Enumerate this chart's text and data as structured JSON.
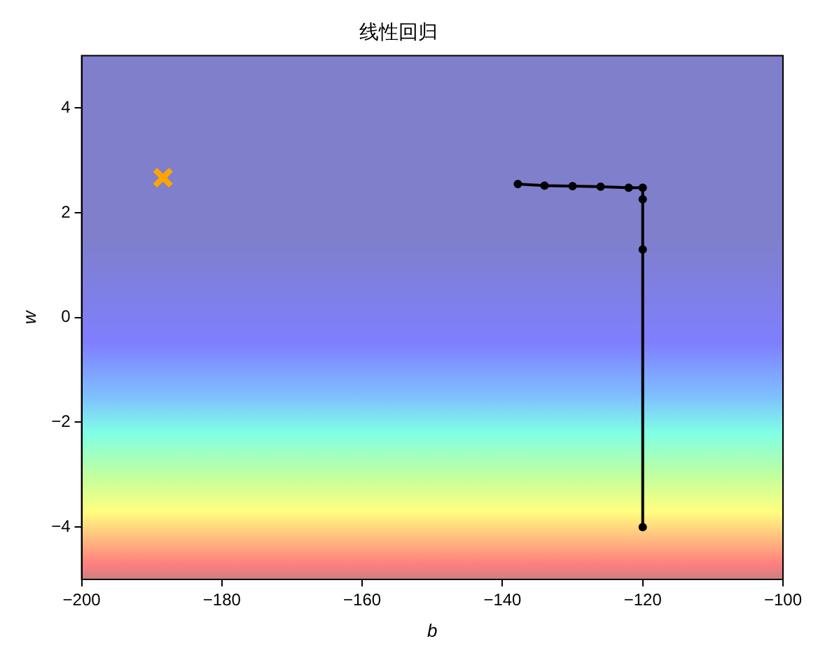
{
  "chart_data": {
    "type": "line",
    "title": "线性回归",
    "xlabel": "b",
    "ylabel": "w",
    "xlim": [
      -200,
      -100
    ],
    "xticks": [
      -200,
      -180,
      -160,
      -140,
      -120,
      -100
    ],
    "ylim": [
      -5,
      5
    ],
    "yticks": [
      -4,
      -2,
      0,
      2,
      4
    ],
    "grid": false,
    "legend": false,
    "series": [
      {
        "color": "#000000",
        "marker": "circle",
        "x": [
          -120,
          -120,
          -120,
          -120,
          -122,
          -126,
          -130,
          -134,
          -137.8
        ],
        "values": [
          -4,
          1.3,
          2.26,
          2.48,
          2.48,
          2.5,
          2.51,
          2.52,
          2.55
        ]
      },
      {
        "type": "scatter",
        "color": "#ffa500",
        "marker": "cross",
        "x": [
          -188.4
        ],
        "values": [
          2.67
        ]
      }
    ]
  }
}
